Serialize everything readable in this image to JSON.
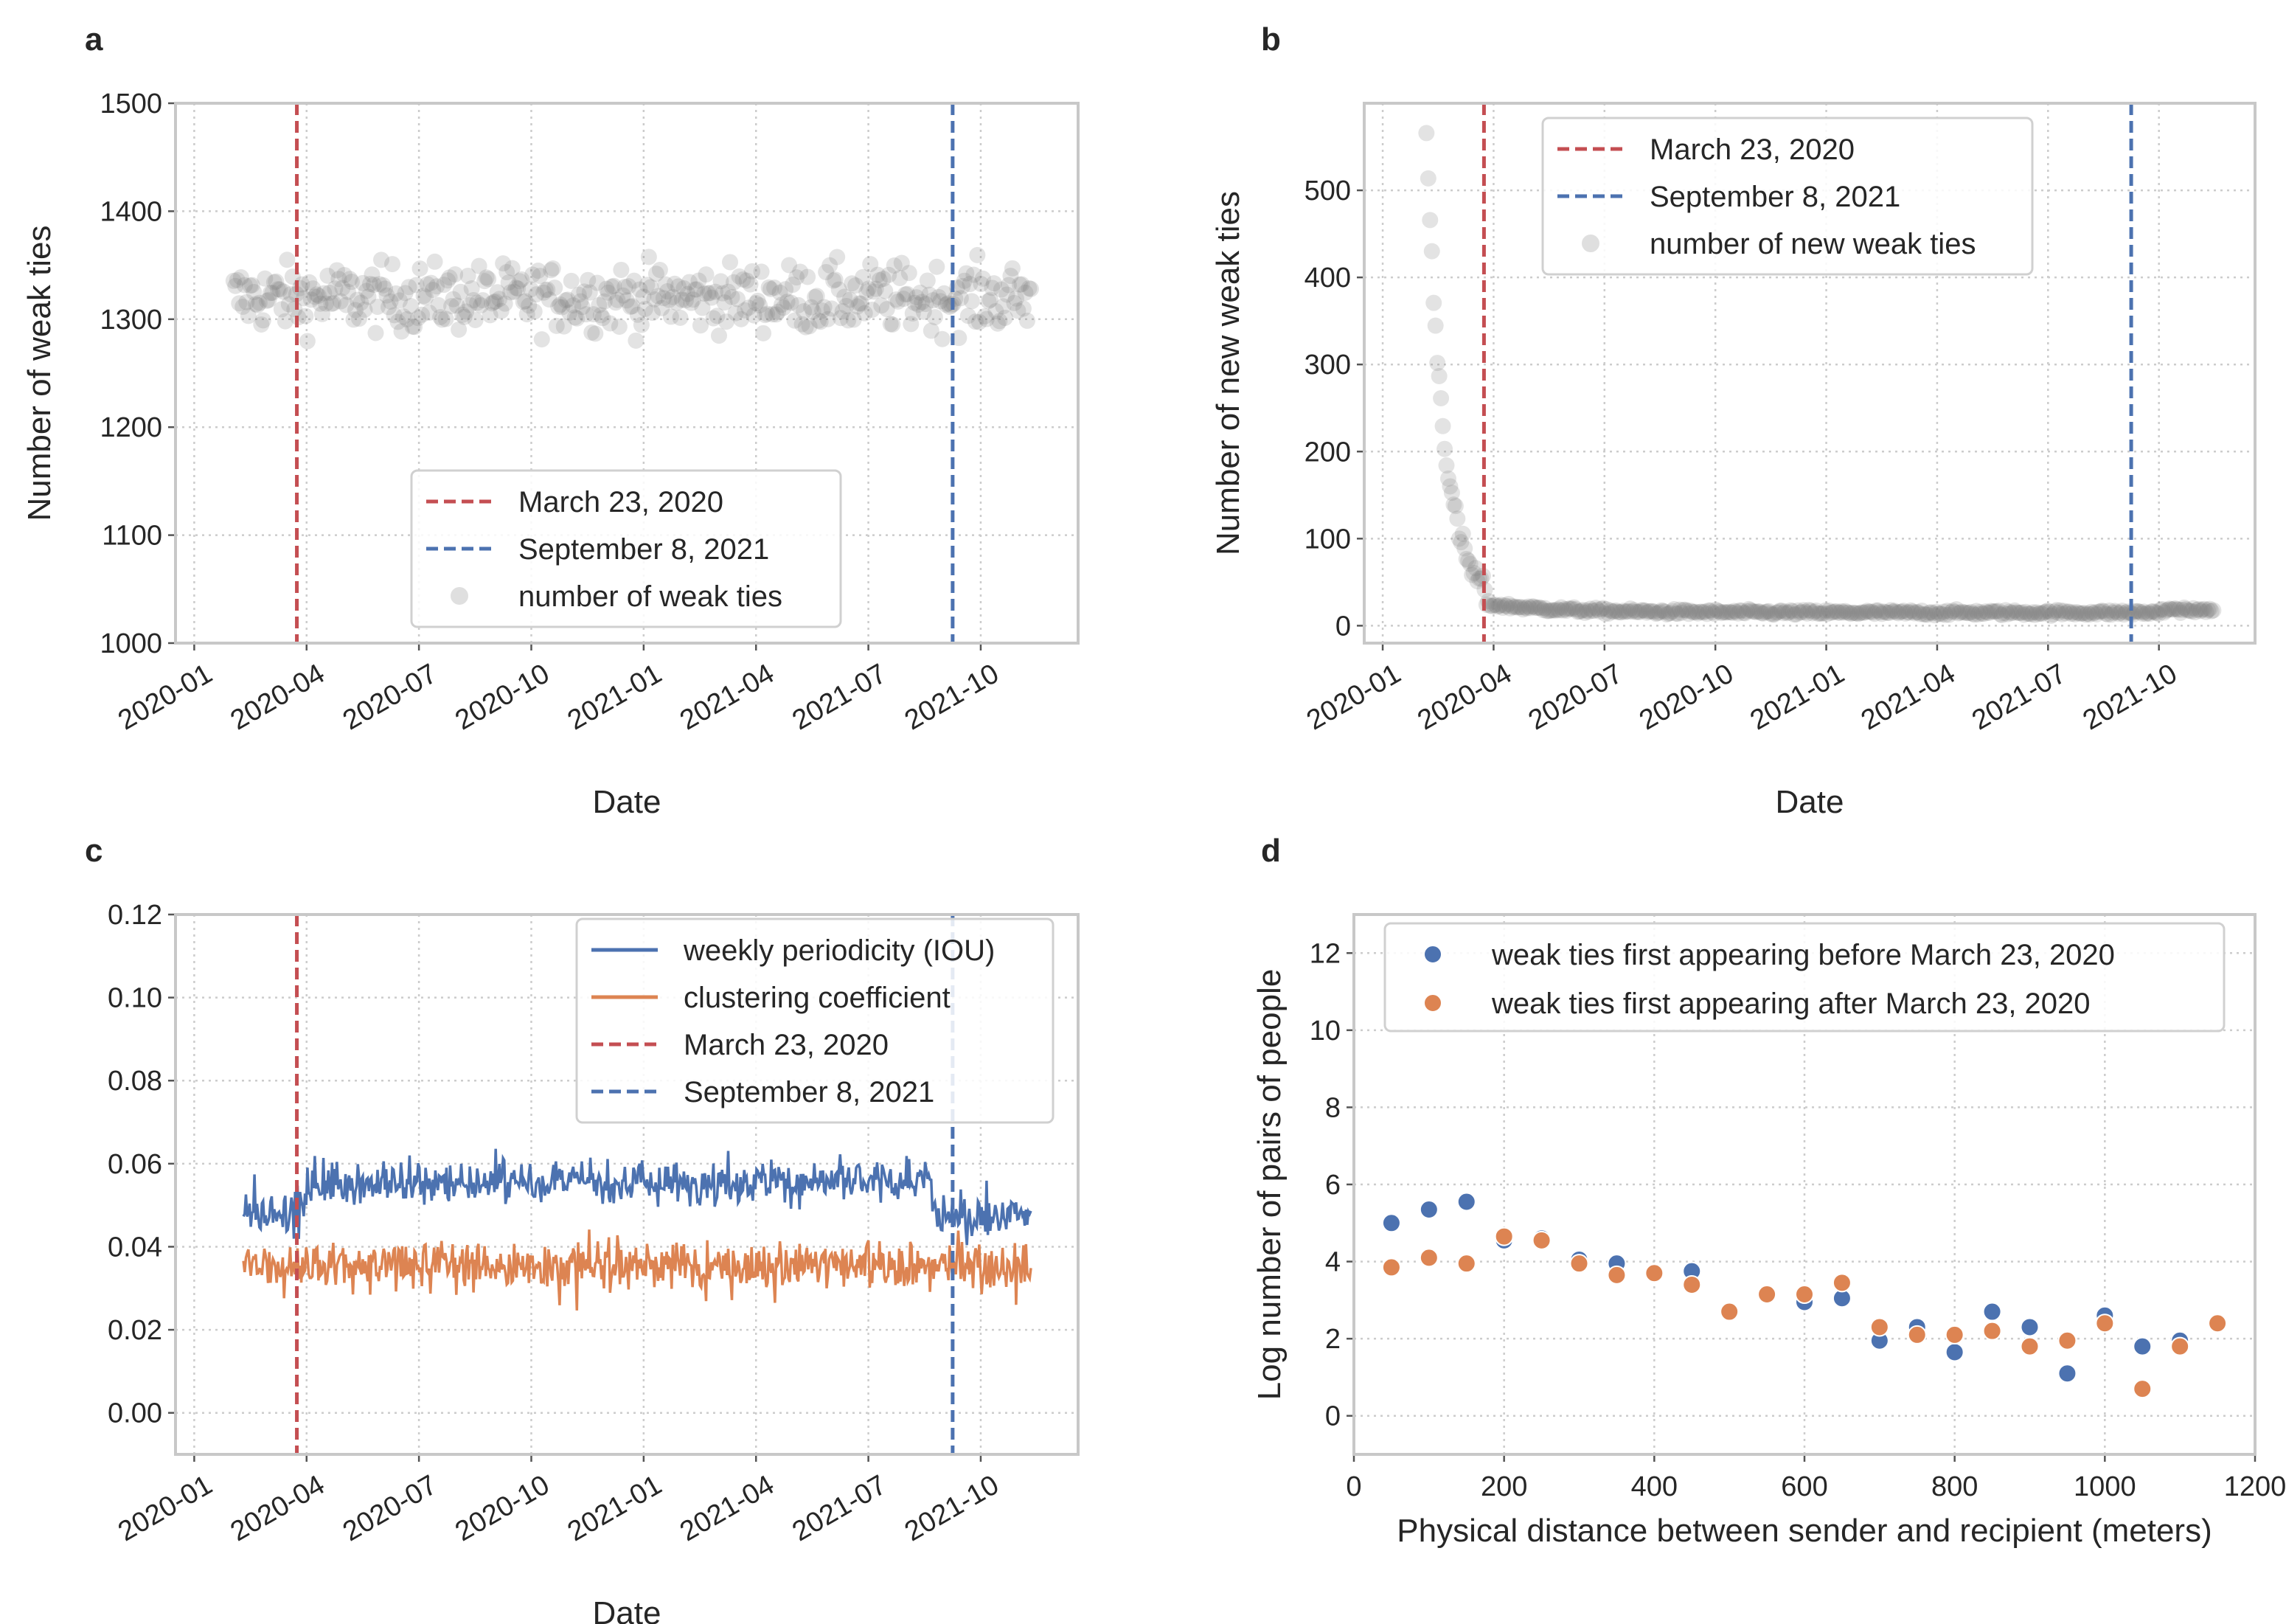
{
  "colors": {
    "red": "#c44e52",
    "blue": "#4c72b0",
    "orange": "#dd8452",
    "gray": "#808080"
  },
  "chart_data": [
    {
      "id": "a",
      "panel_label": "a",
      "type": "scatter",
      "xlabel": "Date",
      "ylabel": "Number of weak ties",
      "x_range_months": [
        -0.5,
        23.6
      ],
      "ylim": [
        1000,
        1500
      ],
      "x_ticks": [
        {
          "label": "2020-01",
          "m": 0
        },
        {
          "label": "2020-04",
          "m": 3
        },
        {
          "label": "2020-07",
          "m": 6
        },
        {
          "label": "2020-10",
          "m": 9
        },
        {
          "label": "2021-01",
          "m": 12
        },
        {
          "label": "2021-04",
          "m": 15
        },
        {
          "label": "2021-07",
          "m": 18
        },
        {
          "label": "2021-10",
          "m": 21
        }
      ],
      "y_ticks": [
        1000,
        1100,
        1200,
        1300,
        1400,
        1500
      ],
      "vlines": [
        {
          "label": "March 23, 2020",
          "m": 2.74,
          "color": "#c44e52"
        },
        {
          "label": "September 8, 2021",
          "m": 20.25,
          "color": "#4c72b0"
        }
      ],
      "series_name": "number of weak ties",
      "series_summary": {
        "start": "2020-02",
        "end": "2021-11",
        "mean": 1320,
        "min": 1255,
        "max": 1385
      },
      "legend_position": "lower-center"
    },
    {
      "id": "b",
      "panel_label": "b",
      "type": "scatter",
      "xlabel": "Date",
      "ylabel": "Number of new weak ties",
      "x_range_months": [
        -0.5,
        23.6
      ],
      "ylim": [
        -20,
        600
      ],
      "x_ticks": [
        {
          "label": "2020-01",
          "m": 0
        },
        {
          "label": "2020-04",
          "m": 3
        },
        {
          "label": "2020-07",
          "m": 6
        },
        {
          "label": "2020-10",
          "m": 9
        },
        {
          "label": "2021-01",
          "m": 12
        },
        {
          "label": "2021-04",
          "m": 15
        },
        {
          "label": "2021-07",
          "m": 18
        },
        {
          "label": "2021-10",
          "m": 21
        }
      ],
      "y_ticks": [
        0,
        100,
        200,
        300,
        400,
        500
      ],
      "vlines": [
        {
          "label": "March 23, 2020",
          "m": 2.74,
          "color": "#c44e52"
        },
        {
          "label": "September 8, 2021",
          "m": 20.25,
          "color": "#4c72b0"
        }
      ],
      "series_name": "number of new weak ties",
      "series_summary": {
        "start_value": 570,
        "decay_to": 25,
        "at": "2020-04",
        "steady_value": 15,
        "end_value": 18
      },
      "legend_position": "upper-center"
    },
    {
      "id": "c",
      "panel_label": "c",
      "type": "line",
      "xlabel": "Date",
      "ylabel": "",
      "x_range_months": [
        -0.5,
        23.6
      ],
      "ylim": [
        -0.01,
        0.12
      ],
      "x_ticks": [
        {
          "label": "2020-01",
          "m": 0
        },
        {
          "label": "2020-04",
          "m": 3
        },
        {
          "label": "2020-07",
          "m": 6
        },
        {
          "label": "2020-10",
          "m": 9
        },
        {
          "label": "2021-01",
          "m": 12
        },
        {
          "label": "2021-04",
          "m": 15
        },
        {
          "label": "2021-07",
          "m": 18
        },
        {
          "label": "2021-10",
          "m": 21
        }
      ],
      "y_ticks": [
        "0.00",
        "0.02",
        "0.04",
        "0.06",
        "0.08",
        "0.10",
        "0.12"
      ],
      "vlines": [
        {
          "label": "March 23, 2020",
          "m": 2.74,
          "color": "#c44e52"
        },
        {
          "label": "September 8, 2021",
          "m": 20.25,
          "color": "#4c72b0"
        }
      ],
      "series": [
        {
          "name": "weekly periodicity (IOU)",
          "color": "#4c72b0",
          "summary": {
            "pre": 0.048,
            "mid": 0.055,
            "end": 0.043
          }
        },
        {
          "name": "clustering coefficient",
          "color": "#dd8452",
          "summary": {
            "mean": 0.036
          }
        }
      ],
      "legend_position": "upper-right"
    },
    {
      "id": "d",
      "panel_label": "d",
      "type": "scatter",
      "xlabel": "Physical distance between sender and recipient (meters)",
      "ylabel": "Log number of pairs of people",
      "xlim": [
        0,
        1200
      ],
      "ylim": [
        -1,
        13
      ],
      "x_ticks": [
        0,
        200,
        400,
        600,
        800,
        1000,
        1200
      ],
      "y_ticks": [
        0,
        2,
        4,
        6,
        8,
        10,
        12
      ],
      "series": [
        {
          "name": "weak ties first appearing before March 23, 2020",
          "color": "#4c72b0",
          "x": [
            50,
            100,
            150,
            200,
            250,
            300,
            350,
            400,
            450,
            500,
            550,
            600,
            650,
            700,
            750,
            800,
            850,
            900,
            950,
            1000,
            1050,
            1100,
            1150
          ],
          "y": [
            5.0,
            5.35,
            5.55,
            4.55,
            4.6,
            4.05,
            3.95,
            3.7,
            3.75,
            2.7,
            3.15,
            2.95,
            3.05,
            1.95,
            2.3,
            1.65,
            2.7,
            2.3,
            1.1,
            2.6,
            1.8,
            1.95,
            2.4
          ]
        },
        {
          "name": "weak ties first appearing after March 23, 2020",
          "color": "#dd8452",
          "x": [
            50,
            100,
            150,
            200,
            250,
            300,
            350,
            400,
            450,
            500,
            550,
            600,
            650,
            700,
            750,
            800,
            850,
            900,
            950,
            1000,
            1050,
            1100,
            1150
          ],
          "y": [
            3.85,
            4.1,
            3.95,
            4.65,
            4.55,
            3.95,
            3.65,
            3.7,
            3.4,
            2.7,
            3.15,
            3.15,
            3.45,
            2.3,
            2.1,
            2.1,
            2.2,
            1.8,
            1.95,
            2.4,
            0.7,
            1.8,
            2.4
          ]
        }
      ],
      "legend_position": "upper-right"
    }
  ]
}
